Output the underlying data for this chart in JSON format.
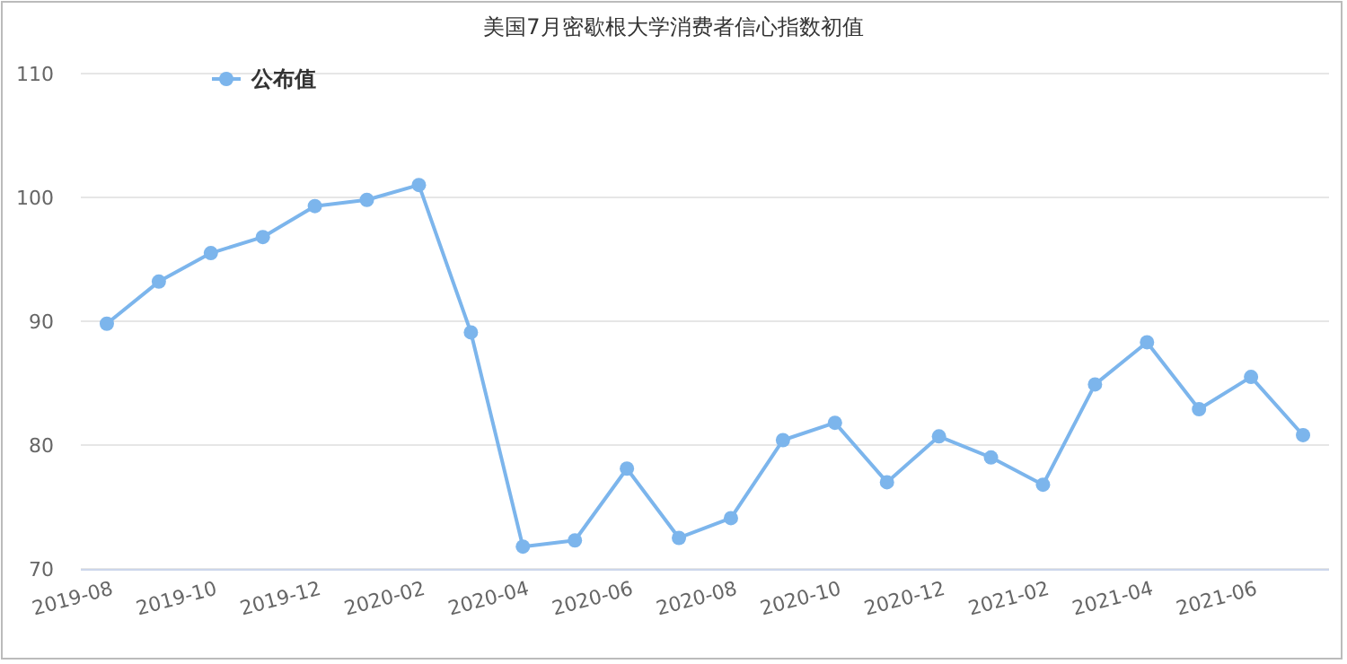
{
  "chart_data": {
    "type": "line",
    "title": "美国7月密歇根大学消费者信心指数初值",
    "categories": [
      "2019-08",
      null,
      "2019-10",
      null,
      "2019-12",
      null,
      "2020-02",
      null,
      "2020-04",
      null,
      "2020-06",
      null,
      "2020-08",
      null,
      "2020-10",
      null,
      "2020-12",
      null,
      "2021-02",
      null,
      "2021-04",
      null,
      "2021-06",
      null
    ],
    "series": [
      {
        "name": "公布值",
        "color": "#7cb5ec",
        "values": [
          89.8,
          93.2,
          95.5,
          96.8,
          99.3,
          99.8,
          101.0,
          89.1,
          71.8,
          72.3,
          78.1,
          72.5,
          74.1,
          80.4,
          81.8,
          77.0,
          80.7,
          79.0,
          76.8,
          84.9,
          88.3,
          82.9,
          85.5,
          80.8
        ]
      }
    ],
    "ylim": [
      70,
      110
    ],
    "yticks": [
      70,
      80,
      90,
      100,
      110
    ],
    "grid": "y",
    "legend": "top left",
    "marker": "circle"
  }
}
